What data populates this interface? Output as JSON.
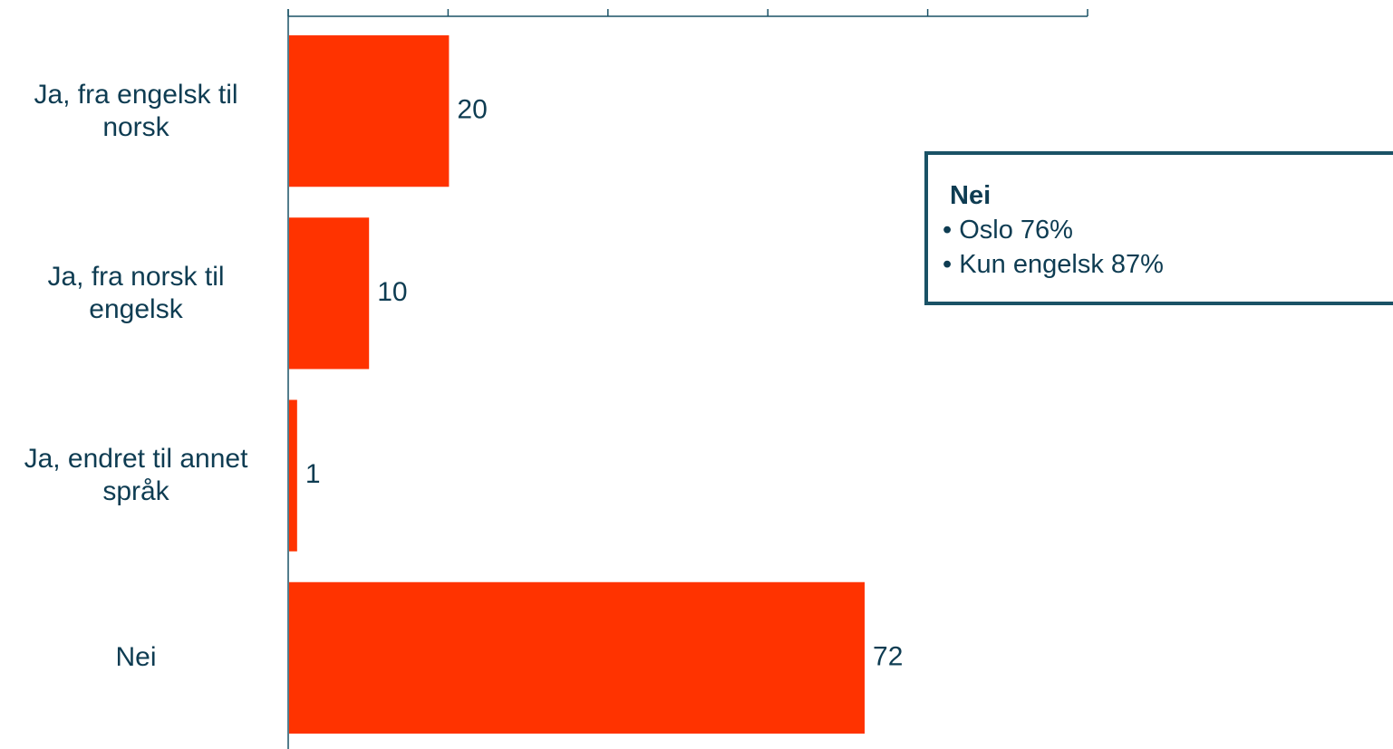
{
  "chart_data": {
    "type": "bar",
    "orientation": "horizontal",
    "categories": [
      "Ja, fra engelsk til norsk",
      "Ja, fra norsk til engelsk",
      "Ja, endret til annet språk",
      "Nei"
    ],
    "values": [
      20,
      10,
      1,
      72
    ],
    "color": "#ff3300",
    "xlim": [
      0,
      100
    ],
    "xticks": [
      0,
      20,
      40,
      60,
      80,
      100
    ],
    "annotation": {
      "title": "Nei",
      "lines": [
        "• Oslo 76%",
        "• Kun engelsk 87%"
      ]
    }
  }
}
